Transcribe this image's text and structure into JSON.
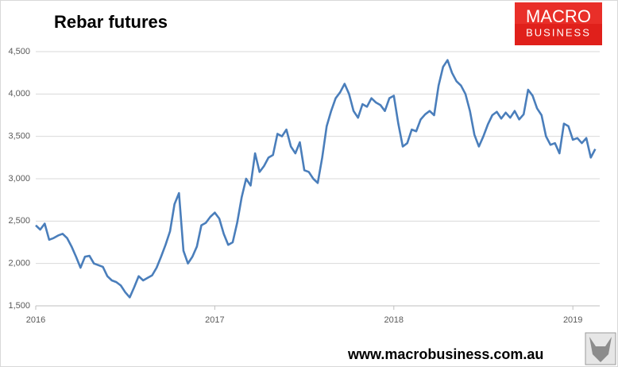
{
  "chart_data": {
    "type": "line",
    "title": "Rebar futures",
    "x": [
      2016,
      2016.025,
      2016.05,
      2016.075,
      2016.1,
      2016.125,
      2016.15,
      2016.175,
      2016.2,
      2016.225,
      2016.25,
      2016.275,
      2016.3,
      2016.325,
      2016.35,
      2016.375,
      2016.4,
      2016.425,
      2016.45,
      2016.475,
      2016.5,
      2016.525,
      2016.55,
      2016.575,
      2016.6,
      2016.625,
      2016.65,
      2016.675,
      2016.7,
      2016.725,
      2016.75,
      2016.775,
      2016.8,
      2016.825,
      2016.85,
      2016.875,
      2016.9,
      2016.925,
      2016.95,
      2016.975,
      2017,
      2017.025,
      2017.05,
      2017.075,
      2017.1,
      2017.125,
      2017.15,
      2017.175,
      2017.2,
      2017.225,
      2017.25,
      2017.275,
      2017.3,
      2017.325,
      2017.35,
      2017.375,
      2017.4,
      2017.425,
      2017.45,
      2017.475,
      2017.5,
      2017.525,
      2017.55,
      2017.575,
      2017.6,
      2017.625,
      2017.65,
      2017.675,
      2017.7,
      2017.725,
      2017.75,
      2017.775,
      2017.8,
      2017.825,
      2017.85,
      2017.875,
      2017.9,
      2017.925,
      2017.95,
      2017.975,
      2018,
      2018.025,
      2018.05,
      2018.075,
      2018.1,
      2018.125,
      2018.15,
      2018.175,
      2018.2,
      2018.225,
      2018.25,
      2018.275,
      2018.3,
      2018.325,
      2018.35,
      2018.375,
      2018.4,
      2018.425,
      2018.45,
      2018.475,
      2018.5,
      2018.525,
      2018.55,
      2018.575,
      2018.6,
      2018.625,
      2018.65,
      2018.675,
      2018.7,
      2018.725,
      2018.75,
      2018.775,
      2018.8,
      2018.825,
      2018.85,
      2018.875,
      2018.9,
      2018.925,
      2018.95,
      2018.975,
      2019,
      2019.025,
      2019.05,
      2019.075,
      2019.1,
      2019.125
    ],
    "series": [
      {
        "name": "Rebar futures",
        "color": "#4a7ebb",
        "values": [
          2450,
          2400,
          2470,
          2280,
          2300,
          2330,
          2350,
          2300,
          2200,
          2080,
          1950,
          2080,
          2090,
          2000,
          1980,
          1960,
          1850,
          1800,
          1780,
          1740,
          1660,
          1600,
          1720,
          1850,
          1800,
          1830,
          1860,
          1950,
          2080,
          2220,
          2380,
          2700,
          2830,
          2150,
          2000,
          2080,
          2200,
          2450,
          2480,
          2550,
          2600,
          2530,
          2350,
          2220,
          2250,
          2480,
          2780,
          3000,
          2920,
          3300,
          3080,
          3150,
          3250,
          3280,
          3530,
          3500,
          3580,
          3380,
          3300,
          3430,
          3100,
          3080,
          3000,
          2950,
          3250,
          3620,
          3800,
          3950,
          4020,
          4120,
          4000,
          3800,
          3720,
          3880,
          3850,
          3950,
          3900,
          3870,
          3800,
          3950,
          3980,
          3650,
          3380,
          3420,
          3580,
          3560,
          3700,
          3760,
          3800,
          3750,
          4100,
          4320,
          4400,
          4250,
          4150,
          4100,
          4000,
          3800,
          3520,
          3380,
          3500,
          3640,
          3750,
          3790,
          3710,
          3780,
          3720,
          3800,
          3700,
          3760,
          4050,
          3980,
          3830,
          3750,
          3500,
          3400,
          3420,
          3300,
          3650,
          3620,
          3460,
          3480,
          3420,
          3480,
          3250,
          3350
        ]
      }
    ],
    "xlim": [
      2016,
      2019.15
    ],
    "xticks": [
      2016,
      2017,
      2018,
      2019
    ],
    "ylim": [
      1500,
      4500
    ],
    "yticks": [
      {
        "value": 1500,
        "label": "1,500"
      },
      {
        "value": 2000,
        "label": "2,000"
      },
      {
        "value": 2500,
        "label": "2,500"
      },
      {
        "value": 3000,
        "label": "3,000"
      },
      {
        "value": 3500,
        "label": "3,500"
      },
      {
        "value": 4000,
        "label": "4,000"
      },
      {
        "value": 4500,
        "label": "4,500"
      }
    ],
    "grid": true
  },
  "logo": {
    "line1": "MACRO",
    "line2": "BUSINESS"
  },
  "footer": "www.macrobusiness.com.au"
}
